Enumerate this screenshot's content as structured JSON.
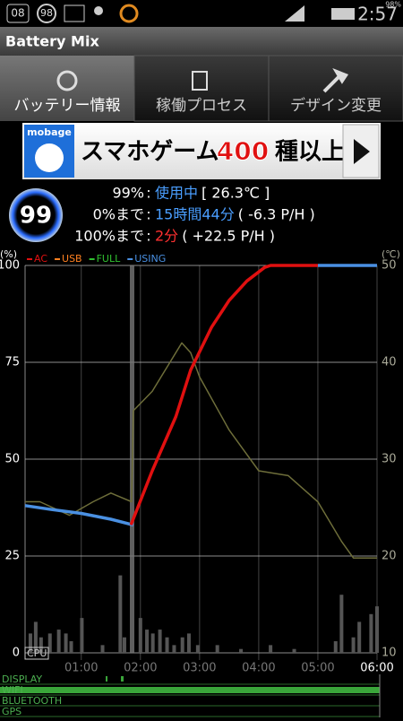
{
  "status_bar": {
    "badges": [
      "08",
      "98"
    ],
    "battery": "98%",
    "time": "2:57"
  },
  "app_title": "Battery Mix",
  "tabs": [
    "バッテリー情報",
    "稼働プロセス",
    "デザイン変更"
  ],
  "ad": {
    "brand": "mobage",
    "text": "スマホゲーム",
    "number": "400",
    "suffix": "種以上"
  },
  "battery": {
    "level": "99",
    "separator": ":",
    "lines": [
      {
        "label": "99%",
        "value": "使用中",
        "value_color": "#4a9eff",
        "extra": "[ 26.3℃ ]"
      },
      {
        "label": "0%まで",
        "value": "15時間44分",
        "value_color": "#4a9eff",
        "extra": "( -6.3 P/H )"
      },
      {
        "label": "100%まで",
        "value": "2分",
        "value_color": "#ff3030",
        "extra": "( +22.5 P/H )"
      }
    ]
  },
  "chart_data": {
    "type": "line",
    "y_unit": "(%)",
    "y2_unit": "(℃)",
    "xlim": [
      0.05,
      6
    ],
    "xticks": [
      {
        "value": 1,
        "label": "01:00"
      },
      {
        "value": 2,
        "label": "02:00"
      },
      {
        "value": 3,
        "label": "03:00"
      },
      {
        "value": 4,
        "label": "04:00"
      },
      {
        "value": 5,
        "label": "05:00"
      },
      {
        "value": 6,
        "label": "06:00"
      }
    ],
    "ylim": [
      0,
      100
    ],
    "yticks": [
      0,
      25,
      50,
      75,
      100
    ],
    "y2lim": [
      10,
      50
    ],
    "y2ticks": [
      10,
      20,
      30,
      40,
      50
    ],
    "grid": true,
    "series": [
      {
        "name": "AC",
        "color": "#e01010",
        "x": [
          1.84,
          2.2,
          2.6,
          2.85,
          3.2,
          3.5,
          3.8,
          4.1,
          4.2,
          5.0
        ],
        "values": [
          33,
          47,
          61,
          73,
          84,
          91,
          96,
          99.5,
          100,
          100
        ]
      },
      {
        "name": "USB",
        "color": "#ff8020",
        "x": [],
        "values": []
      },
      {
        "name": "FULL",
        "color": "#30c030",
        "x": [],
        "values": []
      },
      {
        "name": "USING",
        "color": "#4a90e2",
        "x": [
          0.05,
          0.5,
          1.0,
          1.5,
          1.88,
          3,
          5.0,
          6.0
        ],
        "values": [
          38,
          37,
          36,
          34.5,
          33,
          null,
          100,
          100
        ]
      },
      {
        "color": "#6e6e3a",
        "axis": "y2",
        "x": [
          0.05,
          0.3,
          0.8,
          1.2,
          1.5,
          1.85,
          1.88,
          2.2,
          2.5,
          2.7,
          2.85,
          3.0,
          3.5,
          4.0,
          4.5,
          5.0,
          5.4,
          5.6,
          6.0
        ],
        "values": [
          25.6,
          25.6,
          24.2,
          25.6,
          26.5,
          25.6,
          35,
          37,
          40,
          42,
          41,
          38.5,
          33,
          28.8,
          28.3,
          25.6,
          21.5,
          19.8,
          19.8
        ]
      }
    ],
    "cpu": {
      "name": "CPU",
      "color": "#555555",
      "x": [
        0.14,
        0.23,
        0.32,
        0.47,
        0.62,
        0.74,
        0.83,
        1.01,
        1.36,
        1.66,
        1.73,
        2.0,
        2.11,
        2.21,
        2.33,
        2.45,
        2.57,
        2.71,
        2.82,
        2.97,
        3.3,
        3.7,
        4.2,
        4.6,
        5.3,
        5.4,
        5.6,
        5.7,
        5.9,
        6.0
      ],
      "values": [
        5,
        8,
        4,
        5,
        6,
        5,
        3,
        9,
        2,
        20,
        4,
        9,
        6,
        5,
        6,
        4,
        2,
        4,
        5,
        2,
        2,
        1,
        2,
        1,
        3,
        15,
        4,
        8,
        10,
        12
      ]
    },
    "bars": [
      "DISPLAY",
      "WIFI",
      "BLUETOOTH",
      "GPS"
    ]
  }
}
